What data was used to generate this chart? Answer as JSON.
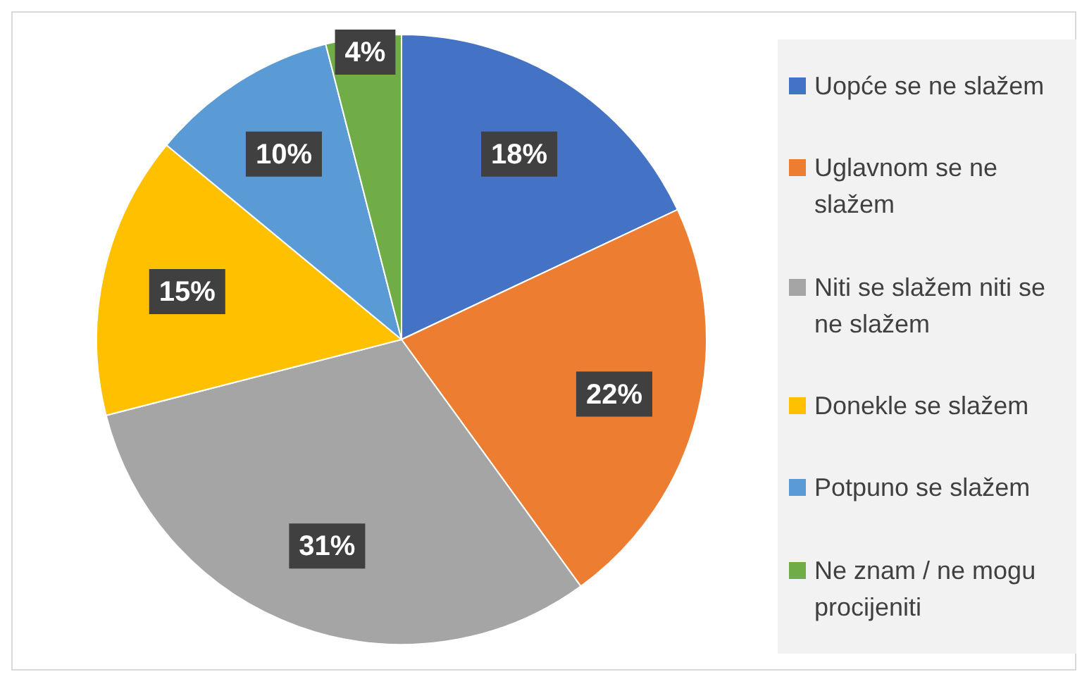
{
  "chart_data": {
    "type": "pie",
    "categories": [
      "Uopće se ne slažem",
      "Uglavnom se ne slažem",
      "Niti se slažem niti se ne slažem",
      "Donekle se slažem",
      "Potpuno se slažem",
      "Ne znam / ne mogu procijeniti"
    ],
    "values": [
      18,
      22,
      31,
      15,
      10,
      4
    ],
    "colors": [
      "#4472c4",
      "#ed7d31",
      "#a5a5a5",
      "#ffc000",
      "#5b9bd5",
      "#70ad47"
    ],
    "value_labels": [
      "18%",
      "22%",
      "31%",
      "15%",
      "10%",
      "4%"
    ],
    "legend": "right"
  }
}
